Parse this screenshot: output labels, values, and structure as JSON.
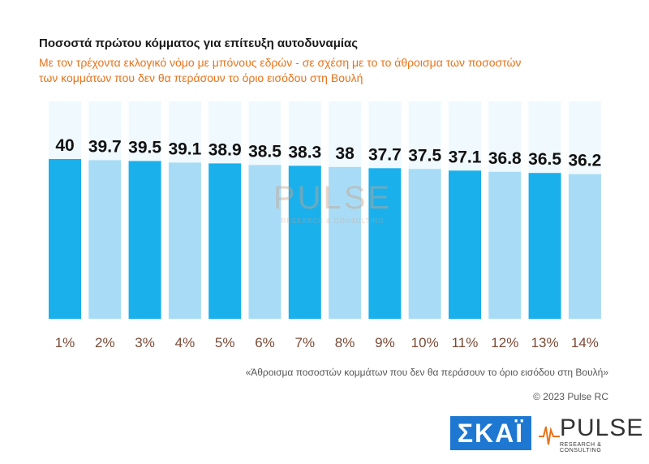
{
  "chart_data": {
    "type": "bar",
    "title": "Ποσοστά πρώτου κόμματος για επίτευξη αυτοδυναμίας",
    "subtitle": "Με τον τρέχοντα εκλογικό νόμο με μπόνους εδρών - σε σχέση με το το άθροισμα των ποσοστών των κομμάτων που δεν θα περάσουν το όριο εισόδου στη Βουλή",
    "categories": [
      "1%",
      "2%",
      "3%",
      "4%",
      "5%",
      "6%",
      "7%",
      "8%",
      "9%",
      "10%",
      "11%",
      "12%",
      "13%",
      "14%"
    ],
    "values": [
      40,
      39.7,
      39.5,
      39.1,
      38.9,
      38.5,
      38.3,
      38,
      37.7,
      37.5,
      37.1,
      36.8,
      36.5,
      36.2
    ],
    "value_labels": [
      "40",
      "39.7",
      "39.5",
      "39.1",
      "38.9",
      "38.5",
      "38.3",
      "38",
      "37.7",
      "37.5",
      "37.1",
      "36.8",
      "36.5",
      "36.2"
    ],
    "xlabel": "«Άθροισμα ποσοστών κομμάτων που δεν θα περάσουν το όριο εισόδου στη Βουλή»",
    "ylabel": "",
    "ylim": [
      0,
      40
    ],
    "colors": {
      "dark": "#1ab0ec",
      "light": "#a8dcf6",
      "track": "#f0f9fe"
    }
  },
  "footer": {
    "copyright": "© 2023 Pulse RC"
  },
  "watermark": {
    "name": "PULSE",
    "tagline": "RESEARCH & CONSULTING"
  },
  "logos": {
    "skai": "ΣΚΑΪ",
    "pulse_name": "PULSE",
    "pulse_tagline": "RESEARCH & CONSULTING"
  }
}
